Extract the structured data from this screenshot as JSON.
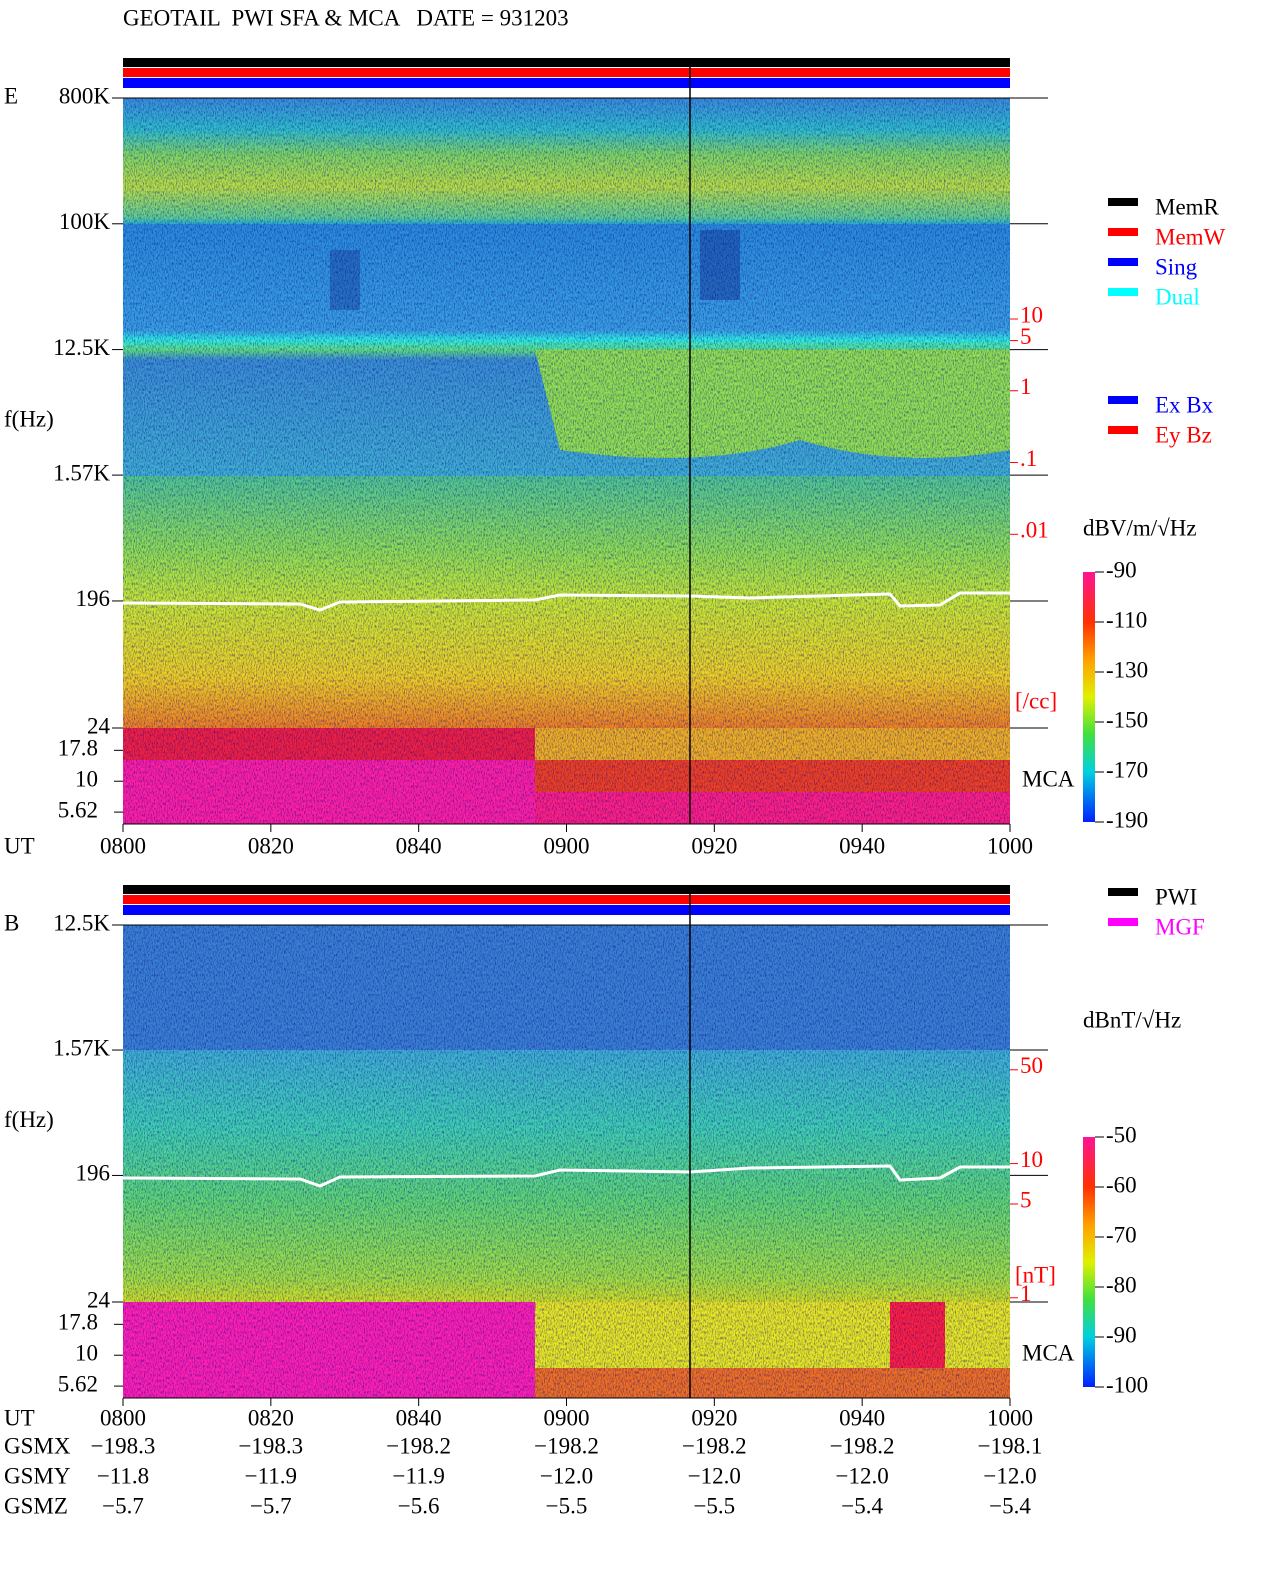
{
  "title": "GEOTAIL  PWI SFA & MCA   DATE = 931203",
  "chart_data": [
    {
      "type": "spectrogram",
      "panel": "E",
      "ylabel": "f(Hz)",
      "xlabel": "UT",
      "categories": [
        "0800",
        "0820",
        "0840",
        "0900",
        "0920",
        "0940",
        "1000"
      ],
      "log_y": true,
      "ylim": [
        24,
        800000
      ],
      "yticks": [
        {
          "value": 800000,
          "label": "800K"
        },
        {
          "value": 100000,
          "label": "100K"
        },
        {
          "value": 12500,
          "label": "12.5K"
        },
        {
          "value": 1570,
          "label": "1.57K"
        },
        196,
        24
      ],
      "mca_label": "MCA",
      "mca_ylim": [
        4.5,
        27
      ],
      "mca_yticks": [
        17.8,
        10,
        5.62
      ],
      "y2label": "[/cc]",
      "y2color": "#ff0000",
      "y2lim": [
        2e-05,
        12000
      ],
      "y2ticks": [
        10,
        5,
        1,
        {
          "value": 0.1,
          "label": ".1"
        },
        {
          "value": 0.01,
          "label": ".01"
        }
      ],
      "colorbar": {
        "label": "dBV/m/√Hz",
        "lim": [
          -190,
          -90
        ],
        "ticks": [
          -90,
          -110,
          -130,
          -150,
          -170,
          -190
        ]
      },
      "legend": [
        {
          "name": "MemR",
          "color": "#000000"
        },
        {
          "name": "MemW",
          "color": "#ff0000"
        },
        {
          "name": "Sing",
          "color": "#0000ff"
        },
        {
          "name": "Dual",
          "color": "#00ffff"
        }
      ],
      "legend2": [
        {
          "name": "Ex Bx",
          "color": "#0000ff"
        },
        {
          "name": "Ey Bz",
          "color": "#ff0000"
        }
      ]
    },
    {
      "type": "spectrogram",
      "panel": "B",
      "ylabel": "f(Hz)",
      "xlabel": "UT",
      "categories": [
        "0800",
        "0820",
        "0840",
        "0900",
        "0920",
        "0940",
        "1000"
      ],
      "log_y": true,
      "ylim": [
        24,
        12500
      ],
      "yticks": [
        {
          "value": 12500,
          "label": "12.5K"
        },
        {
          "value": 1570,
          "label": "1.57K"
        },
        196,
        24
      ],
      "mca_label": "MCA",
      "mca_ylim": [
        4.5,
        27
      ],
      "mca_yticks": [
        17.8,
        10,
        5.62
      ],
      "y2label": "[nT]",
      "y2color": "#ff0000",
      "y2lim": [
        0.93,
        600
      ],
      "y2ticks": [
        50,
        10,
        5,
        1
      ],
      "colorbar": {
        "label": "dBnT/√Hz",
        "lim": [
          -100,
          -50
        ],
        "ticks": [
          -50,
          -60,
          -70,
          -80,
          -90,
          -100
        ]
      },
      "legend": [
        {
          "name": "PWI",
          "color": "#000000"
        },
        {
          "name": "MGF",
          "color": "#ff00ff"
        }
      ],
      "ephemeris": [
        {
          "name": "GSMX",
          "values": [
            "−198.3",
            "−198.3",
            "−198.2",
            "−198.2",
            "−198.2",
            "−198.2",
            "−198.1"
          ]
        },
        {
          "name": "GSMY",
          "values": [
            "−11.8",
            "−11.9",
            "−11.9",
            "−12.0",
            "−12.0",
            "−12.0",
            "−12.0"
          ]
        },
        {
          "name": "GSMZ",
          "values": [
            "−5.7",
            "−5.7",
            "−5.6",
            "−5.5",
            "−5.5",
            "−5.4",
            "−5.4"
          ]
        }
      ]
    }
  ]
}
